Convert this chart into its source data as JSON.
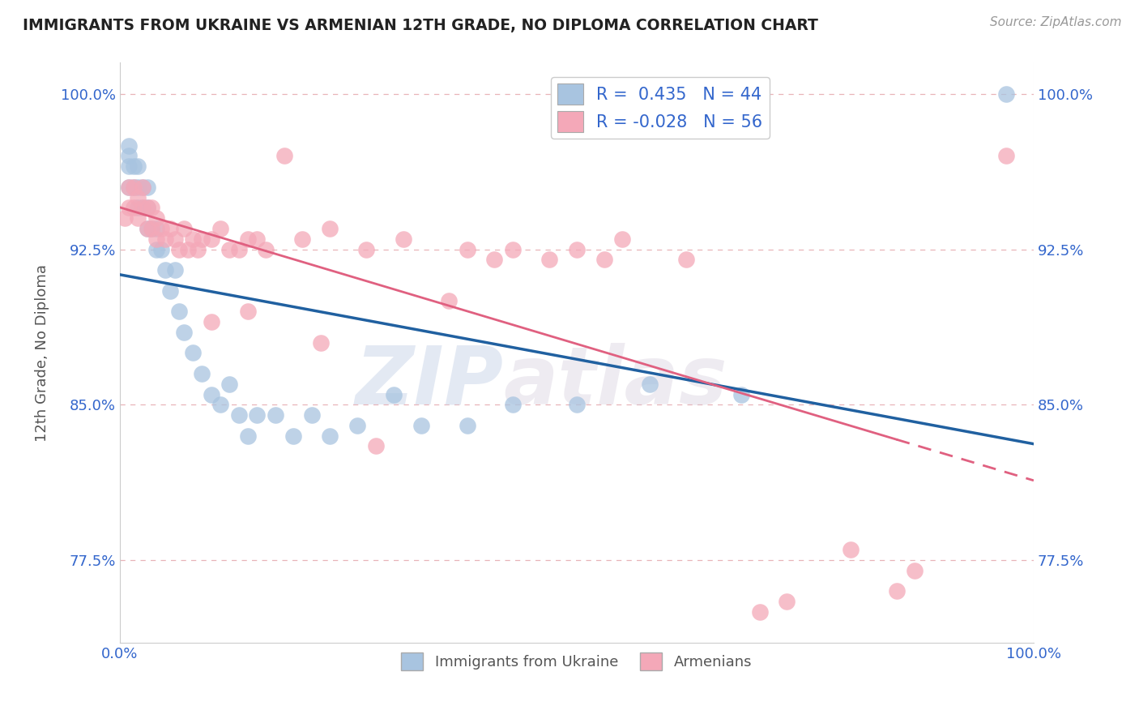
{
  "title": "IMMIGRANTS FROM UKRAINE VS ARMENIAN 12TH GRADE, NO DIPLOMA CORRELATION CHART",
  "source": "Source: ZipAtlas.com",
  "ylabel": "12th Grade, No Diploma",
  "xlim": [
    0.0,
    1.0
  ],
  "ylim": [
    0.735,
    1.015
  ],
  "x_tick_labels": [
    "0.0%",
    "100.0%"
  ],
  "y_tick_vals": [
    0.775,
    0.85,
    0.925,
    1.0
  ],
  "legend_r_ukraine": "0.435",
  "legend_n_ukraine": "44",
  "legend_r_armenian": "-0.028",
  "legend_n_armenian": "56",
  "ukraine_color": "#a8c4e0",
  "armenian_color": "#f4a8b8",
  "ukraine_line_color": "#2060a0",
  "armenian_line_color": "#e06080",
  "watermark_zip": "ZIP",
  "watermark_atlas": "atlas",
  "ukraine_x": [
    0.01,
    0.01,
    0.01,
    0.01,
    0.015,
    0.015,
    0.02,
    0.02,
    0.02,
    0.025,
    0.025,
    0.03,
    0.03,
    0.03,
    0.035,
    0.04,
    0.04,
    0.045,
    0.05,
    0.055,
    0.06,
    0.065,
    0.07,
    0.08,
    0.09,
    0.1,
    0.11,
    0.12,
    0.13,
    0.14,
    0.15,
    0.17,
    0.19,
    0.21,
    0.23,
    0.26,
    0.3,
    0.33,
    0.38,
    0.43,
    0.5,
    0.58,
    0.68,
    0.97
  ],
  "ukraine_y": [
    0.955,
    0.965,
    0.97,
    0.975,
    0.955,
    0.965,
    0.945,
    0.955,
    0.965,
    0.945,
    0.955,
    0.935,
    0.945,
    0.955,
    0.935,
    0.925,
    0.935,
    0.925,
    0.915,
    0.905,
    0.915,
    0.895,
    0.885,
    0.875,
    0.865,
    0.855,
    0.85,
    0.86,
    0.845,
    0.835,
    0.845,
    0.845,
    0.835,
    0.845,
    0.835,
    0.84,
    0.855,
    0.84,
    0.84,
    0.85,
    0.85,
    0.86,
    0.855,
    1.0
  ],
  "armenian_x": [
    0.005,
    0.01,
    0.01,
    0.015,
    0.015,
    0.02,
    0.02,
    0.025,
    0.025,
    0.03,
    0.03,
    0.035,
    0.035,
    0.04,
    0.04,
    0.045,
    0.05,
    0.055,
    0.06,
    0.065,
    0.07,
    0.075,
    0.08,
    0.085,
    0.09,
    0.1,
    0.11,
    0.12,
    0.13,
    0.14,
    0.15,
    0.16,
    0.18,
    0.2,
    0.23,
    0.27,
    0.31,
    0.36,
    0.38,
    0.41,
    0.43,
    0.47,
    0.5,
    0.53,
    0.55,
    0.62,
    0.7,
    0.73,
    0.8,
    0.85,
    0.87,
    0.97,
    0.1,
    0.14,
    0.22,
    0.28
  ],
  "armenian_y": [
    0.94,
    0.945,
    0.955,
    0.945,
    0.955,
    0.94,
    0.95,
    0.945,
    0.955,
    0.935,
    0.945,
    0.935,
    0.945,
    0.93,
    0.94,
    0.935,
    0.93,
    0.935,
    0.93,
    0.925,
    0.935,
    0.925,
    0.93,
    0.925,
    0.93,
    0.93,
    0.935,
    0.925,
    0.925,
    0.93,
    0.93,
    0.925,
    0.97,
    0.93,
    0.935,
    0.925,
    0.93,
    0.9,
    0.925,
    0.92,
    0.925,
    0.92,
    0.925,
    0.92,
    0.93,
    0.92,
    0.75,
    0.755,
    0.78,
    0.76,
    0.77,
    0.97,
    0.89,
    0.895,
    0.88,
    0.83
  ]
}
